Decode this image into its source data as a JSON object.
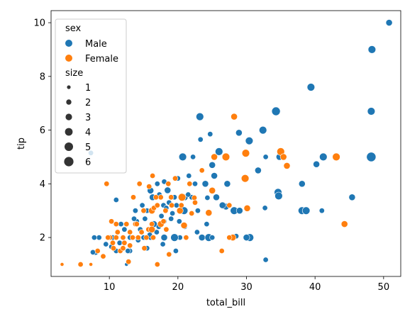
{
  "chart_data": {
    "type": "scatter",
    "xlabel": "total_bill",
    "ylabel": "tip",
    "xlim": [
      1.5,
      52.5
    ],
    "ylim": [
      0.55,
      10.45
    ],
    "xticks": [
      10,
      20,
      30,
      40,
      50
    ],
    "yticks": [
      2,
      4,
      6,
      8,
      10
    ],
    "grid": false,
    "legend_position": "top-left",
    "hue": {
      "title": "sex",
      "entries": [
        {
          "label": "Male",
          "color": "#1f77b4"
        },
        {
          "label": "Female",
          "color": "#ff7f0e"
        }
      ]
    },
    "size": {
      "title": "size",
      "entries": [
        {
          "label": "1",
          "value": 1
        },
        {
          "label": "2",
          "value": 2
        },
        {
          "label": "3",
          "value": 3
        },
        {
          "label": "4",
          "value": 4
        },
        {
          "label": "5",
          "value": 5
        },
        {
          "label": "6",
          "value": 6
        }
      ]
    },
    "series": [
      {
        "name": "Male",
        "color": "#1f77b4",
        "points": [
          [
            50.8,
            10.0,
            3
          ],
          [
            48.3,
            9.0,
            4
          ],
          [
            39.4,
            7.6,
            4
          ],
          [
            48.2,
            6.7,
            4
          ],
          [
            34.3,
            6.7,
            5
          ],
          [
            23.2,
            6.5,
            4
          ],
          [
            32.4,
            6.0,
            4
          ],
          [
            28.9,
            5.9,
            3
          ],
          [
            24.7,
            5.85,
            2
          ],
          [
            30.4,
            5.6,
            4
          ],
          [
            26.0,
            5.2,
            4
          ],
          [
            23.3,
            5.65,
            2
          ],
          [
            48.2,
            5.0,
            6
          ],
          [
            41.2,
            5.0,
            4
          ],
          [
            34.8,
            5.0,
            3
          ],
          [
            32.8,
            5.0,
            2
          ],
          [
            20.7,
            5.0,
            4
          ],
          [
            22.2,
            5.0,
            2
          ],
          [
            7.3,
            5.15,
            2
          ],
          [
            25.0,
            4.7,
            3
          ],
          [
            30.0,
            5.1,
            2
          ],
          [
            40.2,
            4.73,
            3
          ],
          [
            31.7,
            4.5,
            3
          ],
          [
            25.3,
            4.3,
            3
          ],
          [
            38.1,
            4.0,
            3
          ],
          [
            27.2,
            4.0,
            3
          ],
          [
            24.0,
            4.0,
            3
          ],
          [
            22.5,
            4.0,
            2
          ],
          [
            20.0,
            4.2,
            2
          ],
          [
            18.0,
            4.08,
            2
          ],
          [
            17.0,
            4.0,
            2
          ],
          [
            16.0,
            3.75,
            3
          ],
          [
            21.6,
            4.3,
            2
          ],
          [
            18.5,
            3.76,
            3
          ],
          [
            34.6,
            3.68,
            4
          ],
          [
            34.7,
            3.55,
            4
          ],
          [
            25.6,
            3.5,
            3
          ],
          [
            45.4,
            3.5,
            3
          ],
          [
            21.0,
            3.5,
            3
          ],
          [
            19.5,
            3.5,
            2
          ],
          [
            22.0,
            3.5,
            2
          ],
          [
            19.8,
            3.2,
            2
          ],
          [
            15.5,
            3.0,
            2
          ],
          [
            32.7,
            3.1,
            2
          ],
          [
            38.1,
            3.0,
            4
          ],
          [
            38.7,
            3.0,
            4
          ],
          [
            41.0,
            3.0,
            2
          ],
          [
            28.2,
            3.0,
            4
          ],
          [
            29.0,
            3.0,
            3
          ],
          [
            27.0,
            3.15,
            3
          ],
          [
            24.3,
            3.48,
            2
          ],
          [
            20.4,
            3.0,
            3
          ],
          [
            20.9,
            3.0,
            4
          ],
          [
            16.2,
            3.0,
            3
          ],
          [
            13.8,
            3.0,
            2
          ],
          [
            15.0,
            3.0,
            2
          ],
          [
            17.6,
            2.8,
            2
          ],
          [
            19.0,
            2.7,
            2
          ],
          [
            11.0,
            3.4,
            2
          ],
          [
            12.5,
            2.5,
            2
          ],
          [
            14.0,
            2.6,
            2
          ],
          [
            17.5,
            2.5,
            2
          ],
          [
            16.5,
            2.5,
            3
          ],
          [
            24.2,
            2.5,
            2
          ],
          [
            22.8,
            2.2,
            2
          ],
          [
            23.5,
            2.0,
            3
          ],
          [
            24.5,
            2.0,
            4
          ],
          [
            20.3,
            2.0,
            2
          ],
          [
            19.5,
            2.0,
            4
          ],
          [
            18.0,
            2.0,
            3
          ],
          [
            16.0,
            2.0,
            2
          ],
          [
            15.0,
            2.0,
            2
          ],
          [
            13.0,
            2.0,
            2
          ],
          [
            12.0,
            2.0,
            2
          ],
          [
            10.5,
            2.0,
            2
          ],
          [
            8.5,
            2.0,
            2
          ],
          [
            7.8,
            2.0,
            2
          ],
          [
            28.5,
            2.05,
            2
          ],
          [
            30.5,
            2.0,
            4
          ],
          [
            30.0,
            2.0,
            3
          ],
          [
            25.0,
            2.0,
            2
          ],
          [
            9.5,
            1.75,
            2
          ],
          [
            11.0,
            1.5,
            2
          ],
          [
            13.0,
            1.5,
            2
          ],
          [
            15.5,
            1.6,
            2
          ],
          [
            17.8,
            1.75,
            2
          ],
          [
            19.7,
            1.5,
            2
          ],
          [
            8.0,
            1.44,
            2
          ],
          [
            7.6,
            1.45,
            2
          ],
          [
            12.5,
            1.0,
            1
          ],
          [
            32.8,
            1.17,
            2
          ],
          [
            10.3,
            1.66,
            2
          ],
          [
            12.7,
            1.5,
            2
          ],
          [
            11.5,
            1.8,
            2
          ],
          [
            14.5,
            2.3,
            2
          ],
          [
            16.3,
            3.5,
            3
          ],
          [
            17.9,
            3.2,
            2
          ],
          [
            18.3,
            3.1,
            2
          ],
          [
            21.5,
            3.6,
            2
          ],
          [
            26.5,
            3.2,
            3
          ],
          [
            22.9,
            3.0,
            2
          ],
          [
            18.7,
            3.3,
            2
          ],
          [
            14.8,
            3.2,
            2
          ],
          [
            17.3,
            3.6,
            2
          ],
          [
            19.2,
            2.9,
            2
          ],
          [
            20.2,
            2.6,
            2
          ],
          [
            21.0,
            2.4,
            2
          ],
          [
            13.4,
            2.0,
            2
          ],
          [
            14.2,
            1.9,
            2
          ],
          [
            15.9,
            2.1,
            2
          ],
          [
            16.9,
            2.2,
            2
          ],
          [
            11.7,
            2.5,
            2
          ],
          [
            12.2,
            2.3,
            2
          ],
          [
            18.0,
            2.6,
            2
          ],
          [
            17.2,
            2.4,
            2
          ],
          [
            15.2,
            2.7,
            2
          ],
          [
            13.6,
            2.7,
            2
          ]
        ]
      },
      {
        "name": "Female",
        "color": "#ff7f0e",
        "points": [
          [
            3.1,
            1.0,
            1
          ],
          [
            5.8,
            1.0,
            2
          ],
          [
            7.3,
            1.0,
            1
          ],
          [
            17.0,
            1.0,
            2
          ],
          [
            9.6,
            4.0,
            2
          ],
          [
            16.3,
            4.3,
            2
          ],
          [
            14.4,
            4.0,
            2
          ],
          [
            19.6,
            4.2,
            2
          ],
          [
            23.5,
            4.5,
            2
          ],
          [
            25.3,
            5.0,
            3
          ],
          [
            27.0,
            5.0,
            4
          ],
          [
            28.2,
            6.5,
            3
          ],
          [
            29.9,
            5.14,
            4
          ],
          [
            35.0,
            5.2,
            4
          ],
          [
            35.4,
            5.0,
            3
          ],
          [
            35.9,
            4.67,
            3
          ],
          [
            43.1,
            5.0,
            4
          ],
          [
            44.3,
            2.5,
            3
          ],
          [
            29.8,
            4.2,
            4
          ],
          [
            25.0,
            3.75,
            3
          ],
          [
            30.1,
            3.09,
            3
          ],
          [
            27.5,
            3.2,
            2
          ],
          [
            24.5,
            2.92,
            3
          ],
          [
            22.4,
            3.48,
            2
          ],
          [
            20.6,
            3.5,
            4
          ],
          [
            20.3,
            3.0,
            3
          ],
          [
            20.9,
            2.45,
            3
          ],
          [
            19.0,
            3.5,
            2
          ],
          [
            17.5,
            3.5,
            2
          ],
          [
            16.2,
            3.0,
            3
          ],
          [
            15.0,
            3.0,
            2
          ],
          [
            13.5,
            3.5,
            2
          ],
          [
            18.2,
            3.0,
            2
          ],
          [
            11.0,
            2.5,
            2
          ],
          [
            10.3,
            2.6,
            2
          ],
          [
            12.5,
            2.5,
            2
          ],
          [
            13.8,
            2.5,
            2
          ],
          [
            14.7,
            2.2,
            2
          ],
          [
            15.7,
            2.3,
            2
          ],
          [
            16.2,
            2.5,
            2
          ],
          [
            16.4,
            2.0,
            2
          ],
          [
            17.5,
            2.5,
            3
          ],
          [
            18.3,
            2.3,
            2
          ],
          [
            21.2,
            2.0,
            2
          ],
          [
            22.0,
            2.9,
            2
          ],
          [
            10.1,
            2.0,
            2
          ],
          [
            10.6,
            1.6,
            2
          ],
          [
            11.0,
            2.0,
            2
          ],
          [
            11.6,
            1.5,
            2
          ],
          [
            12.0,
            2.0,
            2
          ],
          [
            13.0,
            1.7,
            2
          ],
          [
            13.4,
            2.0,
            2
          ],
          [
            14.2,
            2.0,
            2
          ],
          [
            15.4,
            2.0,
            2
          ],
          [
            16.2,
            2.3,
            3
          ],
          [
            18.7,
            1.37,
            2
          ],
          [
            26.4,
            1.5,
            2
          ],
          [
            28.0,
            2.0,
            3
          ],
          [
            27.5,
            2.0,
            2
          ],
          [
            8.3,
            1.5,
            2
          ],
          [
            9.1,
            1.3,
            2
          ],
          [
            9.8,
            2.0,
            2
          ],
          [
            10.5,
            1.8,
            2
          ],
          [
            12.2,
            1.8,
            2
          ],
          [
            12.8,
            1.1,
            2
          ],
          [
            15.1,
            1.6,
            2
          ],
          [
            16.5,
            3.1,
            2
          ],
          [
            17.0,
            3.2,
            2
          ],
          [
            15.8,
            3.9,
            2
          ],
          [
            13.0,
            2.2,
            2
          ],
          [
            14.0,
            2.5,
            2
          ],
          [
            19.1,
            3.2,
            2
          ],
          [
            20.5,
            3.2,
            2
          ],
          [
            22.5,
            3.3,
            2
          ],
          [
            12.0,
            1.6,
            2
          ],
          [
            11.2,
            2.2,
            2
          ],
          [
            17.9,
            2.6,
            2
          ],
          [
            21.7,
            4.0,
            2
          ],
          [
            16.8,
            3.5,
            2
          ],
          [
            18.6,
            4.0,
            2
          ]
        ]
      }
    ]
  }
}
